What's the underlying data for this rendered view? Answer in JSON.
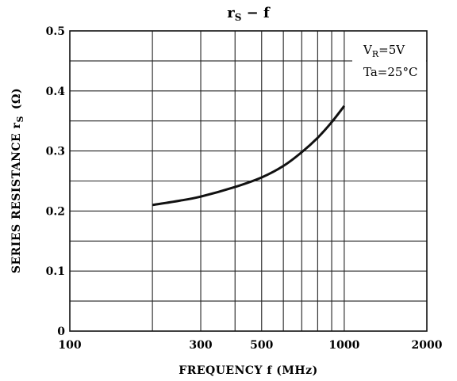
{
  "chart_data": {
    "type": "line",
    "title": {
      "main": "r",
      "sub": "S",
      "rest": " − f"
    },
    "xlabel": "FREQUENCY  f  (MHz)",
    "ylabel": "SERIES RESISTANCE  r",
    "ylabel_sub": "S",
    "ylabel_unit": "(Ω)",
    "xscale": "log",
    "xlim": [
      100,
      2000
    ],
    "ylim": [
      0,
      0.5
    ],
    "x_ticks": [
      100,
      300,
      500,
      1000,
      2000
    ],
    "x_tick_labels": [
      "100",
      "300",
      "500",
      "1000",
      "2000"
    ],
    "y_ticks": [
      0,
      0.1,
      0.2,
      0.3,
      0.4,
      0.5
    ],
    "y_tick_labels": [
      "0",
      "0.1",
      "0.2",
      "0.3",
      "0.4",
      "0.5"
    ],
    "x_grid": [
      200,
      300,
      400,
      500,
      600,
      700,
      800,
      900,
      1000
    ],
    "y_grid": [
      0.05,
      0.1,
      0.15,
      0.2,
      0.25,
      0.3,
      0.35,
      0.4,
      0.45
    ],
    "grid": true,
    "annotations": {
      "vr": {
        "main": "V",
        "sub": "R",
        "rest": "=5V"
      },
      "ta": "Ta=25°C"
    },
    "legend_position": "top-right",
    "series": [
      {
        "x": [
          200,
          250,
          300,
          400,
          500,
          600,
          700,
          800,
          900,
          1000
        ],
        "y": [
          0.21,
          0.217,
          0.224,
          0.24,
          0.256,
          0.275,
          0.298,
          0.322,
          0.348,
          0.375
        ]
      }
    ]
  }
}
